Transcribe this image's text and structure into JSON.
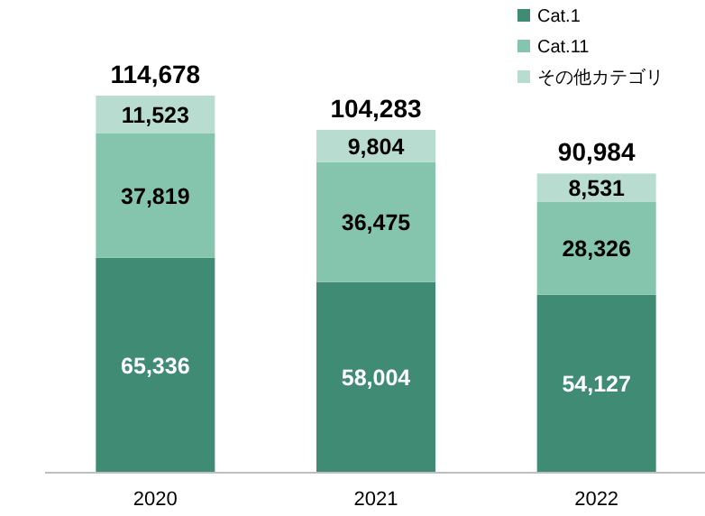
{
  "chart_data": {
    "type": "bar",
    "stacked": true,
    "categories": [
      "2020",
      "2021",
      "2022"
    ],
    "series": [
      {
        "name": "Cat.1",
        "color": "#3f8b73",
        "values": [
          65336,
          58004,
          54127
        ],
        "value_labels": [
          "65,336",
          "58,004",
          "54,127"
        ]
      },
      {
        "name": "Cat.11",
        "color": "#85c5ae",
        "values": [
          37819,
          36475,
          28326
        ],
        "value_labels": [
          "37,819",
          "36,475",
          "28,326"
        ]
      },
      {
        "name": "その他カテゴリ",
        "color": "#b8ddd0",
        "values": [
          11523,
          9804,
          8531
        ],
        "value_labels": [
          "11,523",
          "9,804",
          "8,531"
        ]
      }
    ],
    "totals": [
      "114,678",
      "104,283",
      "90,984"
    ],
    "legend": "top right"
  }
}
